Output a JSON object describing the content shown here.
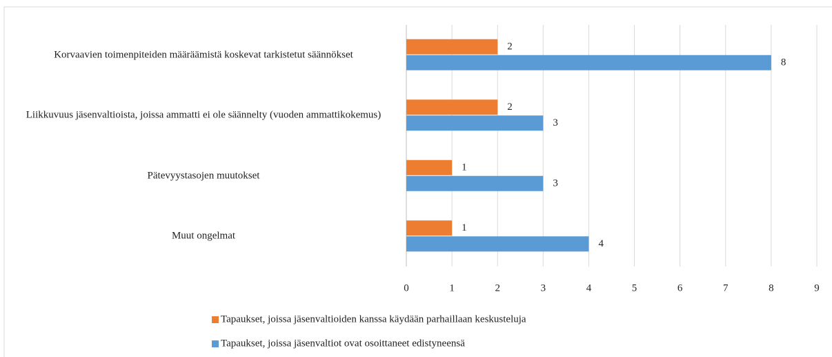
{
  "chart_data": {
    "type": "bar",
    "orientation": "horizontal",
    "categories": [
      "Korvaavien toimenpiteiden määräämistä koskevat tarkistetut säännökset",
      "Liikkuvuus jäsenvaltioista, joissa ammatti ei ole säännelty (vuoden ammattikokemus)",
      "Pätevyystasojen muutokset",
      "Muut ongelmat"
    ],
    "series": [
      {
        "name": "Tapaukset, joissa jäsenvaltioiden kanssa käydään parhaillaan keskusteluja",
        "color": "#ed7d31",
        "values": [
          2,
          2,
          1,
          1
        ]
      },
      {
        "name": "Tapaukset, joissa jäsenvaltiot ovat osoittaneet edistyneensä",
        "color": "#5b9bd5",
        "values": [
          8,
          3,
          3,
          4
        ]
      }
    ],
    "xlim": [
      0,
      9
    ],
    "xticks": [
      0,
      1,
      2,
      3,
      4,
      5,
      6,
      7,
      8,
      9
    ],
    "grid": true,
    "legend": "bottom"
  }
}
